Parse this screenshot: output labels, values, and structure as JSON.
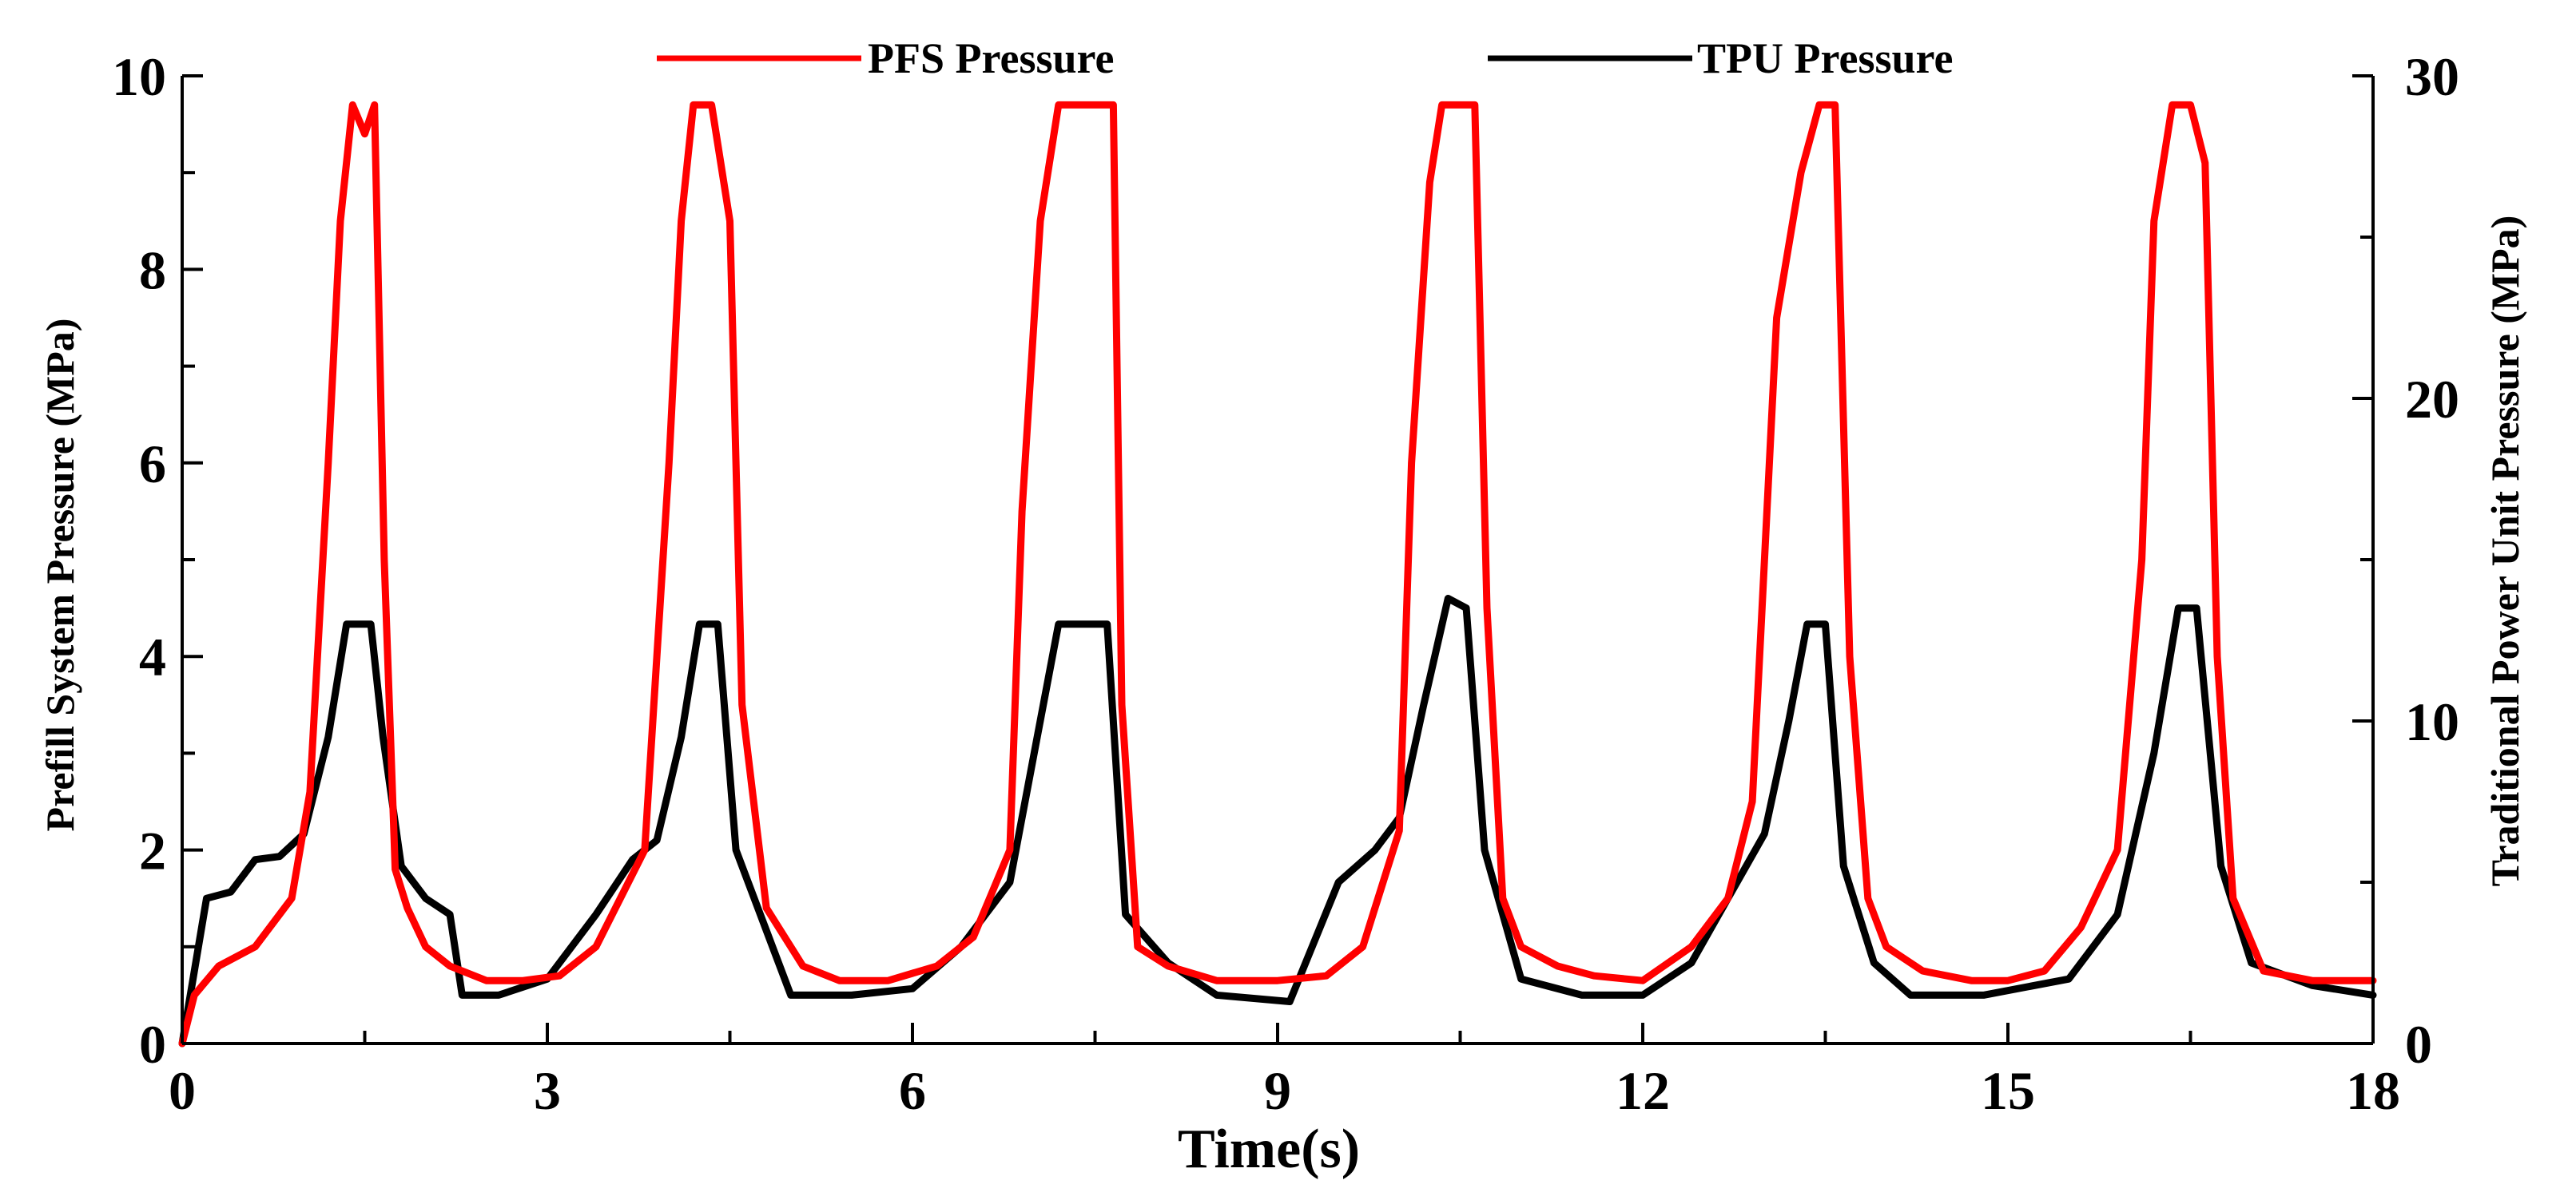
{
  "chart_data": {
    "type": "line",
    "title": "",
    "xlabel": "Time(s)",
    "ylabel": "Prefill System Pressure (MPa)",
    "y2label": "Traditional Power Unit Pressure (MPa)",
    "xlim": [
      0,
      18
    ],
    "ylim": [
      0,
      10
    ],
    "y2lim": [
      0,
      30
    ],
    "x_ticks": [
      "0",
      "3",
      "6",
      "9",
      "12",
      "15",
      "18"
    ],
    "y_ticks": [
      "0",
      "2",
      "4",
      "6",
      "8",
      "10"
    ],
    "y2_ticks": [
      "0",
      "10",
      "20",
      "30"
    ],
    "legend_position": "top",
    "series": [
      {
        "name": "PFS Pressure",
        "axis": "left",
        "color": "#ff0000",
        "x": [
          0,
          0.1,
          0.3,
          0.6,
          0.9,
          1.05,
          1.2,
          1.3,
          1.4,
          1.5,
          1.58,
          1.66,
          1.75,
          1.85,
          2.0,
          2.2,
          2.5,
          2.8,
          3.1,
          3.4,
          3.8,
          4.0,
          4.1,
          4.2,
          4.35,
          4.5,
          4.6,
          4.8,
          5.1,
          5.4,
          5.8,
          6.2,
          6.5,
          6.8,
          6.9,
          7.05,
          7.2,
          7.3,
          7.5,
          7.65,
          7.72,
          7.85,
          8.1,
          8.5,
          9.0,
          9.4,
          9.7,
          10.0,
          10.1,
          10.25,
          10.35,
          10.5,
          10.62,
          10.72,
          10.85,
          11.0,
          11.3,
          11.6,
          12.0,
          12.4,
          12.7,
          12.9,
          13.1,
          13.3,
          13.45,
          13.58,
          13.7,
          13.85,
          14.0,
          14.3,
          14.7,
          15.0,
          15.3,
          15.6,
          15.9,
          16.1,
          16.2,
          16.35,
          16.5,
          16.62,
          16.72,
          16.85,
          17.1,
          17.5,
          18.0
        ],
        "values": [
          0,
          0.5,
          0.8,
          1.0,
          1.5,
          2.6,
          6.0,
          8.5,
          9.7,
          9.4,
          9.7,
          5.0,
          1.8,
          1.4,
          1.0,
          0.8,
          0.65,
          0.65,
          0.7,
          1.0,
          2.0,
          6.0,
          8.5,
          9.7,
          9.7,
          8.5,
          3.5,
          1.4,
          0.8,
          0.65,
          0.65,
          0.8,
          1.1,
          2.0,
          5.5,
          8.5,
          9.7,
          9.7,
          9.7,
          9.7,
          3.5,
          1.0,
          0.8,
          0.65,
          0.65,
          0.7,
          1.0,
          2.2,
          6.0,
          8.9,
          9.7,
          9.7,
          9.7,
          4.5,
          1.5,
          1.0,
          0.8,
          0.7,
          0.65,
          1.0,
          1.5,
          2.5,
          7.5,
          9.0,
          9.7,
          9.7,
          4.0,
          1.5,
          1.0,
          0.75,
          0.65,
          0.65,
          0.75,
          1.2,
          2.0,
          5.0,
          8.5,
          9.7,
          9.7,
          9.1,
          4.0,
          1.5,
          0.75,
          0.65,
          0.65
        ]
      },
      {
        "name": "TPU Pressure",
        "axis": "right",
        "color": "#000000",
        "x": [
          0,
          0.2,
          0.4,
          0.6,
          0.8,
          1.0,
          1.2,
          1.35,
          1.55,
          1.65,
          1.8,
          2.0,
          2.2,
          2.3,
          2.6,
          3.0,
          3.4,
          3.7,
          3.9,
          4.1,
          4.25,
          4.4,
          4.55,
          4.8,
          5.0,
          5.5,
          6.0,
          6.4,
          6.8,
          7.0,
          7.2,
          7.3,
          7.6,
          7.75,
          8.1,
          8.5,
          9.1,
          9.5,
          9.8,
          10.0,
          10.2,
          10.4,
          10.55,
          10.7,
          11.0,
          11.5,
          12.0,
          12.4,
          12.7,
          13.0,
          13.2,
          13.35,
          13.5,
          13.65,
          13.9,
          14.2,
          14.8,
          15.5,
          15.9,
          16.2,
          16.4,
          16.55,
          16.75,
          17.0,
          17.5,
          18.0
        ],
        "values": [
          0,
          4.5,
          4.7,
          5.7,
          5.8,
          6.5,
          9.5,
          13.0,
          13.0,
          9.5,
          5.5,
          4.5,
          4.0,
          1.5,
          1.5,
          2.0,
          4.0,
          5.7,
          6.3,
          9.5,
          13.0,
          13.0,
          6.0,
          3.5,
          1.5,
          1.5,
          1.7,
          3.0,
          5.0,
          9.0,
          13.0,
          13.0,
          13.0,
          4.0,
          2.5,
          1.5,
          1.3,
          5.0,
          6.0,
          7.0,
          10.5,
          13.8,
          13.5,
          6.0,
          2.0,
          1.5,
          1.5,
          2.5,
          4.5,
          6.5,
          10.0,
          13.0,
          13.0,
          5.5,
          2.5,
          1.5,
          1.5,
          2.0,
          4.0,
          9.0,
          13.5,
          13.5,
          5.5,
          2.5,
          1.8,
          1.5
        ]
      }
    ]
  }
}
